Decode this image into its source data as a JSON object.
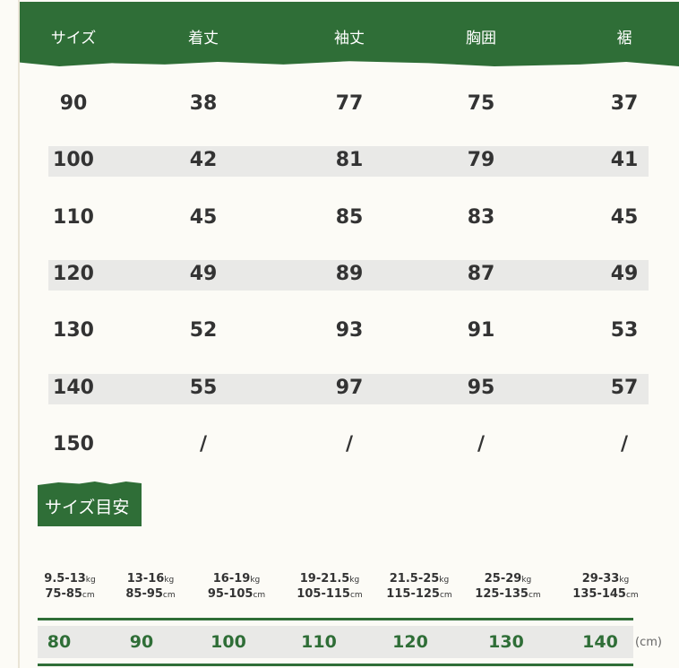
{
  "colors": {
    "accent": "#2f6e37",
    "background": "#fcfbf6",
    "row_shade": "#e9e9e7"
  },
  "table": {
    "headers": [
      "サイズ",
      "着丈",
      "袖丈",
      "胸囲",
      "裾"
    ],
    "rows": [
      [
        "90",
        "38",
        "77",
        "75",
        "37"
      ],
      [
        "100",
        "42",
        "81",
        "79",
        "41"
      ],
      [
        "110",
        "45",
        "85",
        "83",
        "45"
      ],
      [
        "120",
        "49",
        "89",
        "87",
        "49"
      ],
      [
        "130",
        "52",
        "93",
        "91",
        "53"
      ],
      [
        "140",
        "55",
        "97",
        "95",
        "57"
      ],
      [
        "150",
        "/",
        "/",
        "/",
        "/"
      ]
    ]
  },
  "size_guide": {
    "title": "サイズ目安",
    "unit": "(cm)",
    "entries": [
      {
        "weight": "9.5-13",
        "weight_unit": "kg",
        "height": "75-85",
        "height_unit": "cm",
        "size": "80"
      },
      {
        "weight": "13-16",
        "weight_unit": "kg",
        "height": "85-95",
        "height_unit": "cm",
        "size": "90"
      },
      {
        "weight": "16-19",
        "weight_unit": "kg",
        "height": "95-105",
        "height_unit": "cm",
        "size": "100"
      },
      {
        "weight": "19-21.5",
        "weight_unit": "kg",
        "height": "105-115",
        "height_unit": "cm",
        "size": "110"
      },
      {
        "weight": "21.5-25",
        "weight_unit": "kg",
        "height": "115-125",
        "height_unit": "cm",
        "size": "120"
      },
      {
        "weight": "25-29",
        "weight_unit": "kg",
        "height": "125-135",
        "height_unit": "cm",
        "size": "130"
      },
      {
        "weight": "29-33",
        "weight_unit": "kg",
        "height": "135-145",
        "height_unit": "cm",
        "size": "140"
      }
    ]
  }
}
